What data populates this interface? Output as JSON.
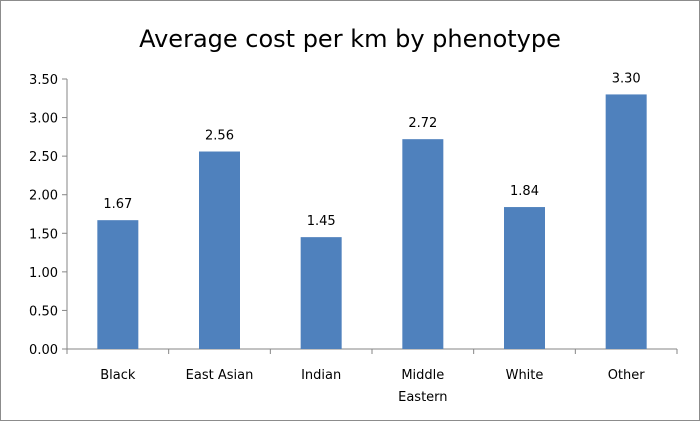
{
  "chart_data": {
    "type": "bar",
    "title": "Average cost per km by phenotype",
    "xlabel": "",
    "ylabel": "",
    "categories": [
      "Black",
      "East Asian",
      "Indian",
      "Middle Eastern",
      "White",
      "Other"
    ],
    "category_lines": [
      [
        "Black"
      ],
      [
        "East Asian"
      ],
      [
        "Indian"
      ],
      [
        "Middle",
        "Eastern"
      ],
      [
        "White"
      ],
      [
        "Other"
      ]
    ],
    "values": [
      1.67,
      2.56,
      1.45,
      2.72,
      1.84,
      3.3
    ],
    "value_labels": [
      "1.67",
      "2.56",
      "1.45",
      "2.72",
      "1.84",
      "3.30"
    ],
    "ylim": [
      0,
      3.5
    ],
    "yticks": [
      0,
      0.5,
      1.0,
      1.5,
      2.0,
      2.5,
      3.0,
      3.5
    ],
    "ytick_labels": [
      "0.00",
      "0.50",
      "1.00",
      "1.50",
      "2.00",
      "2.50",
      "3.00",
      "3.50"
    ],
    "grid": false,
    "legend": "none",
    "bar_color": "#4f81bd",
    "axis_color": "#868686"
  }
}
